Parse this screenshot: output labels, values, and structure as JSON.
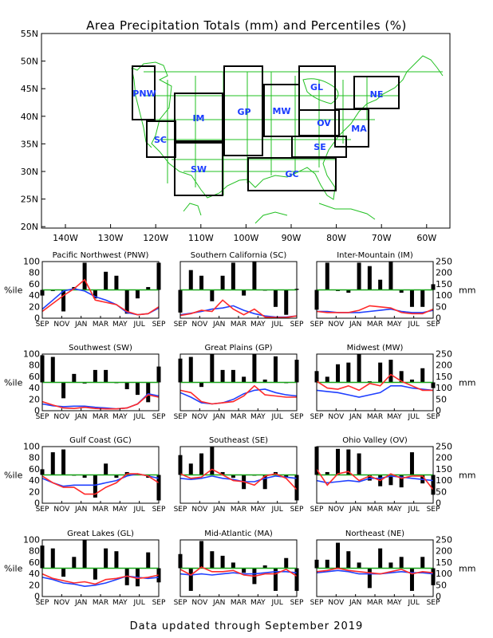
{
  "title": "Area Precipitation Totals (mm) and Percentiles (%)",
  "footer": "Data updated through September 2019",
  "colors": {
    "bars": "#000000",
    "percentile_line": "#ff2a2a",
    "normal_line": "#2040ff",
    "median_line": "#1aa61a",
    "map_lines": "#22c022",
    "region_labels": "#1a3cff"
  },
  "map": {
    "lat_labels": [
      "55N",
      "50N",
      "45N",
      "40N",
      "35N",
      "30N",
      "25N",
      "20N"
    ],
    "lon_labels": [
      "140W",
      "130W",
      "120W",
      "110W",
      "100W",
      "90W",
      "80W",
      "70W",
      "60W"
    ],
    "region_labels": [
      "PNW",
      "SC",
      "IM",
      "SW",
      "GP",
      "MW",
      "GC",
      "GL",
      "OV",
      "SE",
      "MA",
      "NE"
    ]
  },
  "panel_axes": {
    "x_ticks": [
      "SEP",
      "NOV",
      "JAN",
      "MAR",
      "MAY",
      "JUL",
      "SEP"
    ],
    "pct_ticks": [
      "0",
      "20",
      "40",
      "60",
      "80",
      "100"
    ],
    "mm_ticks": [
      "0",
      "50",
      "100",
      "150",
      "200",
      "250"
    ],
    "pct_label": "%ile",
    "mm_label": "mm"
  },
  "chart_data": [
    {
      "type": "bar",
      "title": "Pacific Northwest (PNW)",
      "ylim": [
        0,
        100
      ],
      "y2lim": [
        0,
        250
      ],
      "bars_percentile": [
        40,
        48,
        12,
        55,
        98,
        35,
        82,
        75,
        8,
        35,
        55,
        98
      ],
      "precip_mm": [
        30,
        65,
        100,
        130,
        170,
        80,
        70,
        60,
        30,
        15,
        20,
        50
      ],
      "normal_mm": [
        40,
        80,
        120,
        130,
        120,
        95,
        80,
        60,
        25,
        15,
        20,
        45
      ]
    },
    {
      "type": "bar",
      "title": "Southern California (SC)",
      "ylim": [
        0,
        100
      ],
      "y2lim": [
        0,
        250
      ],
      "bars_percentile": [
        10,
        85,
        75,
        30,
        75,
        98,
        40,
        100,
        50,
        20,
        6,
        52
      ],
      "precip_mm": [
        12,
        20,
        35,
        30,
        80,
        40,
        15,
        40,
        5,
        3,
        3,
        10
      ],
      "normal_mm": [
        15,
        22,
        30,
        40,
        45,
        55,
        35,
        20,
        10,
        5,
        5,
        10
      ]
    },
    {
      "type": "bar",
      "title": "Inter-Mountain (IM)",
      "ylim": [
        0,
        100
      ],
      "y2lim": [
        0,
        250
      ],
      "bars_percentile": [
        15,
        98,
        48,
        45,
        98,
        92,
        68,
        100,
        45,
        20,
        20,
        60
      ],
      "precip_mm": [
        30,
        25,
        25,
        25,
        35,
        55,
        50,
        45,
        25,
        20,
        20,
        40
      ],
      "normal_mm": [
        30,
        30,
        25,
        25,
        25,
        30,
        35,
        40,
        30,
        25,
        25,
        35
      ]
    },
    {
      "type": "bar",
      "title": "Southwest (SW)",
      "ylim": [
        0,
        100
      ],
      "y2lim": [
        0,
        250
      ],
      "bars_percentile": [
        98,
        95,
        22,
        65,
        48,
        72,
        72,
        50,
        38,
        28,
        15,
        78
      ],
      "precip_mm": [
        40,
        25,
        12,
        10,
        15,
        10,
        8,
        8,
        12,
        30,
        70,
        60
      ],
      "normal_mm": [
        30,
        22,
        18,
        20,
        20,
        15,
        12,
        8,
        12,
        30,
        75,
        65
      ]
    },
    {
      "type": "bar",
      "title": "Great Plains (GP)",
      "ylim": [
        0,
        100
      ],
      "y2lim": [
        0,
        250
      ],
      "bars_percentile": [
        92,
        95,
        42,
        100,
        72,
        72,
        60,
        100,
        55,
        96,
        50,
        90
      ],
      "precip_mm": [
        90,
        80,
        40,
        30,
        35,
        40,
        65,
        110,
        70,
        65,
        60,
        60
      ],
      "normal_mm": [
        80,
        60,
        35,
        30,
        35,
        50,
        75,
        90,
        95,
        80,
        70,
        65
      ]
    },
    {
      "type": "bar",
      "title": "Midwest (MW)",
      "ylim": [
        0,
        100
      ],
      "y2lim": [
        0,
        250
      ],
      "bars_percentile": [
        70,
        60,
        82,
        85,
        100,
        52,
        85,
        90,
        70,
        55,
        75,
        40
      ],
      "precip_mm": [
        130,
        100,
        95,
        110,
        90,
        120,
        110,
        160,
        130,
        110,
        90,
        90
      ],
      "normal_mm": [
        90,
        85,
        80,
        70,
        60,
        70,
        80,
        110,
        110,
        100,
        95,
        90
      ]
    },
    {
      "type": "bar",
      "title": "Gulf Coast (GC)",
      "ylim": [
        0,
        100
      ],
      "y2lim": [
        0,
        250
      ],
      "bars_percentile": [
        60,
        90,
        95,
        50,
        45,
        10,
        70,
        45,
        55,
        52,
        45,
        5
      ],
      "precip_mm": [
        120,
        90,
        70,
        70,
        40,
        40,
        70,
        90,
        130,
        130,
        120,
        90
      ],
      "normal_mm": [
        110,
        90,
        75,
        80,
        80,
        80,
        90,
        100,
        120,
        130,
        120,
        110
      ]
    },
    {
      "type": "bar",
      "title": "Southeast (SE)",
      "ylim": [
        0,
        100
      ],
      "y2lim": [
        0,
        250
      ],
      "bars_percentile": [
        85,
        70,
        88,
        100,
        55,
        45,
        25,
        50,
        25,
        55,
        45,
        5
      ],
      "precip_mm": [
        130,
        110,
        115,
        150,
        125,
        100,
        95,
        80,
        120,
        130,
        110,
        60
      ],
      "normal_mm": [
        110,
        105,
        110,
        120,
        110,
        105,
        95,
        95,
        110,
        120,
        115,
        110
      ]
    },
    {
      "type": "bar",
      "title": "Ohio Valley (OV)",
      "ylim": [
        0,
        100
      ],
      "y2lim": [
        0,
        250
      ],
      "bars_percentile": [
        100,
        55,
        96,
        95,
        88,
        40,
        30,
        32,
        28,
        90,
        35,
        15
      ],
      "precip_mm": [
        150,
        80,
        130,
        140,
        100,
        120,
        100,
        130,
        110,
        120,
        120,
        60
      ],
      "normal_mm": [
        100,
        90,
        95,
        100,
        95,
        110,
        110,
        120,
        115,
        110,
        105,
        100
      ]
    },
    {
      "type": "bar",
      "title": "Great Lakes (GL)",
      "ylim": [
        0,
        100
      ],
      "y2lim": [
        0,
        250
      ],
      "bars_percentile": [
        90,
        85,
        35,
        70,
        100,
        30,
        85,
        80,
        20,
        18,
        78,
        25
      ],
      "precip_mm": [
        100,
        80,
        70,
        60,
        65,
        55,
        75,
        80,
        90,
        80,
        85,
        95
      ],
      "normal_mm": [
        85,
        75,
        60,
        55,
        45,
        50,
        60,
        75,
        90,
        85,
        80,
        85
      ]
    },
    {
      "type": "bar",
      "title": "Mid-Atlantic (MA)",
      "ylim": [
        0,
        100
      ],
      "y2lim": [
        0,
        250
      ],
      "bars_percentile": [
        75,
        10,
        98,
        80,
        72,
        60,
        42,
        22,
        55,
        10,
        68,
        10
      ],
      "precip_mm": [
        120,
        95,
        130,
        110,
        110,
        115,
        95,
        90,
        100,
        100,
        120,
        90
      ],
      "normal_mm": [
        100,
        95,
        100,
        95,
        100,
        105,
        100,
        100,
        105,
        110,
        110,
        105
      ]
    },
    {
      "type": "bar",
      "title": "Northeast (NE)",
      "ylim": [
        0,
        100
      ],
      "y2lim": [
        0,
        250
      ],
      "bars_percentile": [
        65,
        65,
        95,
        80,
        60,
        15,
        85,
        60,
        70,
        10,
        70,
        20
      ],
      "precip_mm": [
        110,
        115,
        125,
        115,
        110,
        105,
        100,
        110,
        120,
        100,
        110,
        105
      ],
      "normal_mm": [
        105,
        110,
        115,
        110,
        100,
        100,
        100,
        105,
        110,
        105,
        105,
        100
      ]
    }
  ]
}
